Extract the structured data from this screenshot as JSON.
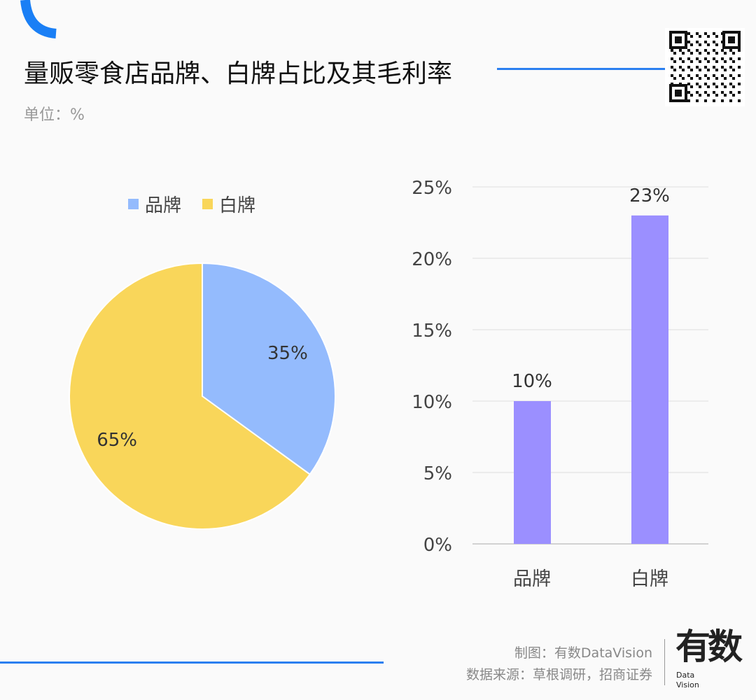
{
  "header": {
    "title": "量贩零食店品牌、白牌占比及其毛利率",
    "unit": "单位：%"
  },
  "footer": {
    "credit": "制图：有数DataVision",
    "source": "数据来源：草根调研，招商证券",
    "logo_text": "有数",
    "logo_sub": "Data Vision"
  },
  "colors": {
    "accent": "#2b7ff0",
    "brand": "#94bbfd",
    "white_label": "#f9d65a",
    "bar": "#9b8fff"
  },
  "chart_data": [
    {
      "type": "pie",
      "legend": [
        "品牌",
        "白牌"
      ],
      "legend_position": "top",
      "values": [
        35,
        65
      ],
      "labels": [
        "35%",
        "65%"
      ]
    },
    {
      "type": "bar",
      "categories": [
        "品牌",
        "白牌"
      ],
      "values": [
        10,
        23
      ],
      "data_labels": [
        "10%",
        "23%"
      ],
      "ylim": [
        0,
        25
      ],
      "yticks": [
        "0%",
        "5%",
        "10%",
        "15%",
        "20%",
        "25%"
      ],
      "grid": true
    }
  ]
}
